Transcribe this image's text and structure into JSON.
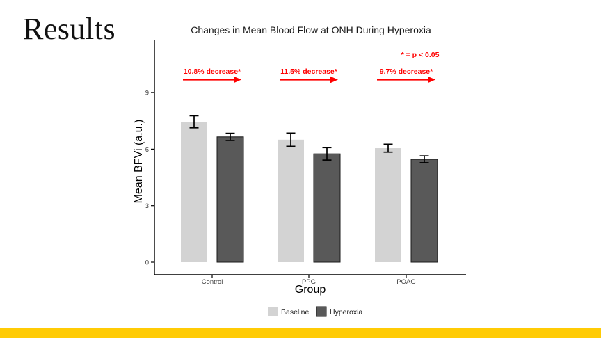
{
  "slide": {
    "title": "Results",
    "accent_bar_color": "#FFCB05"
  },
  "chart_data": {
    "type": "bar",
    "title": "Changes in Mean Blood Flow at ONH During Hyperoxia",
    "xlabel": "Group",
    "ylabel": "Mean BFVi (a.u.)",
    "categories": [
      "Control",
      "PPG",
      "POAG"
    ],
    "series": [
      {
        "name": "Baseline",
        "color": "#d3d3d3",
        "border": "",
        "values": [
          7.45,
          6.5,
          6.05
        ],
        "se": [
          0.32,
          0.35,
          0.21
        ]
      },
      {
        "name": "Hyperoxia",
        "color": "#595959",
        "border": "#1a1a1a",
        "values": [
          6.65,
          5.75,
          5.46
        ],
        "se": [
          0.19,
          0.33,
          0.18
        ]
      }
    ],
    "yticks": [
      0,
      3,
      6,
      9
    ],
    "ylim": [
      0,
      11.8
    ],
    "grid": false,
    "legend_position": "bottom",
    "annotations": [
      {
        "text": "10.8% decrease*",
        "category": "Control"
      },
      {
        "text": "11.5% decrease*",
        "category": "PPG"
      },
      {
        "text": "9.7% decrease*",
        "category": "POAG"
      }
    ],
    "significance_note": "* = p < 0.05",
    "annotation_color": "#FF0000",
    "axis_color": "#000000",
    "errorbar_color": "#000000"
  }
}
